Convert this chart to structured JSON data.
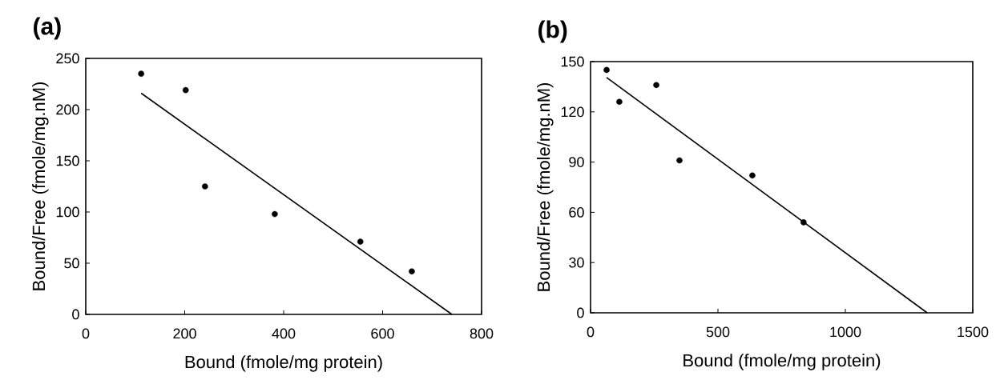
{
  "chart_data": [
    {
      "type": "scatter",
      "title": "(a)",
      "xlabel": "Bound (fmole/mg protein)",
      "ylabel": "Bound/Free (fmole/mg.nM)",
      "xlim": [
        0,
        800
      ],
      "ylim": [
        0,
        250
      ],
      "xticks": [
        0,
        200,
        400,
        600,
        800
      ],
      "yticks": [
        0,
        50,
        100,
        150,
        200,
        250
      ],
      "series": [
        {
          "marker": "circle",
          "color": "#000000",
          "x": [
            112,
            202,
            241,
            382,
            555,
            659
          ],
          "values": [
            235,
            219,
            125,
            98,
            71,
            42
          ]
        },
        {
          "type": "line",
          "marker": "none",
          "color": "#000000",
          "x": [
            112,
            740
          ],
          "values": [
            216,
            0
          ]
        }
      ]
    },
    {
      "type": "scatter",
      "title": "(b)",
      "xlabel": "Bound (fmole/mg protein)",
      "ylabel": "Bound/Free (fmole/mg.nM)",
      "xlim": [
        0,
        1500
      ],
      "ylim": [
        0,
        150
      ],
      "xticks": [
        0,
        500,
        1000,
        1500
      ],
      "yticks": [
        0,
        30,
        60,
        90,
        120,
        150
      ],
      "series": [
        {
          "marker": "circle",
          "color": "#000000",
          "x": [
            63,
            113,
            258,
            349,
            635,
            836
          ],
          "values": [
            145,
            126,
            136,
            91,
            82,
            54
          ]
        },
        {
          "type": "line",
          "marker": "none",
          "color": "#000000",
          "x": [
            63,
            1321
          ],
          "values": [
            140.5,
            0
          ]
        }
      ]
    }
  ]
}
